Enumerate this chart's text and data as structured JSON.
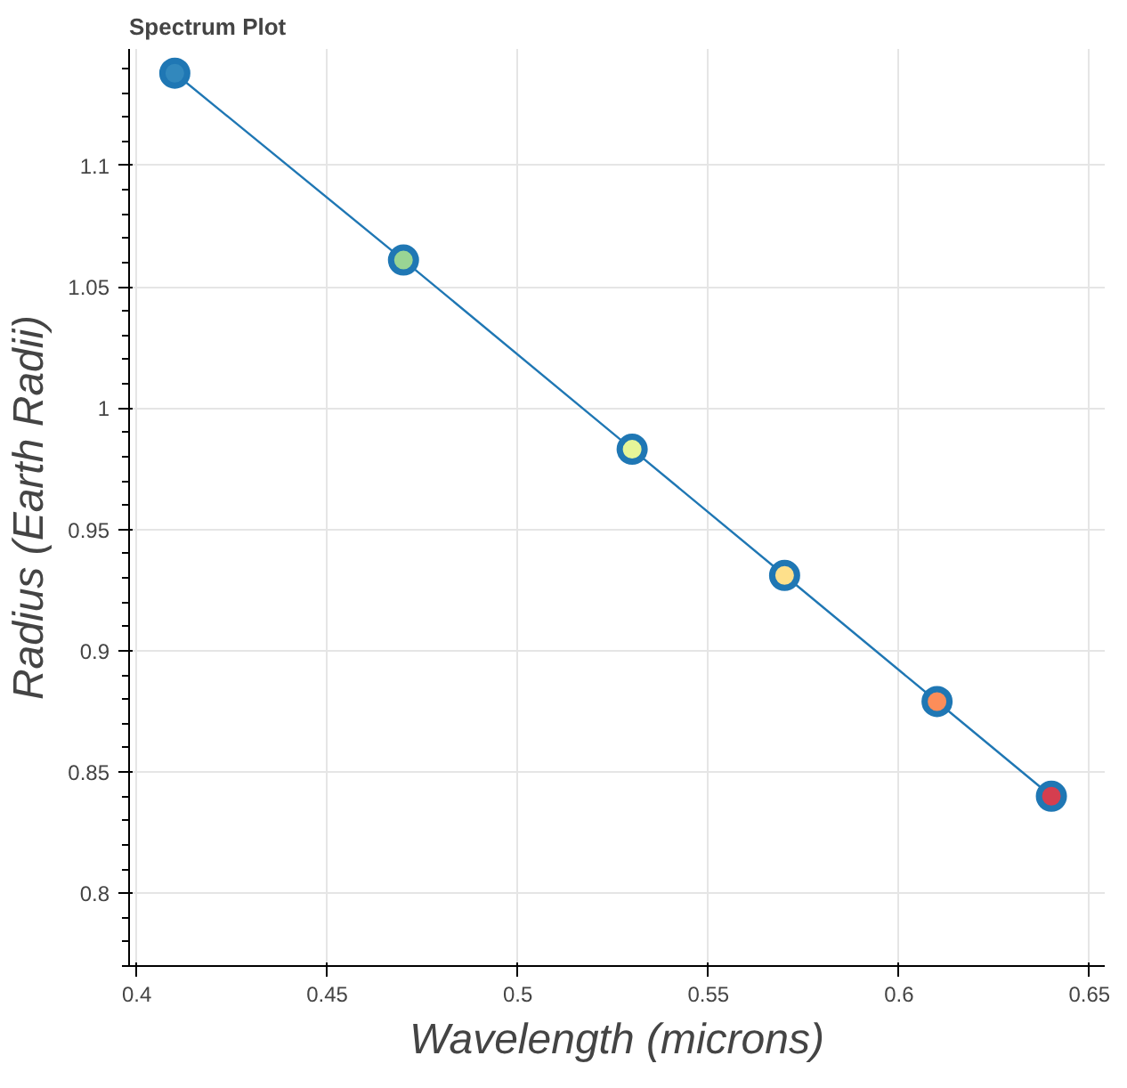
{
  "chart_data": {
    "type": "line",
    "title": "Spectrum Plot",
    "xlabel": "Wavelength (microns)",
    "ylabel": "Radius (Earth Radii)",
    "x": [
      0.41,
      0.47,
      0.53,
      0.57,
      0.61,
      0.64
    ],
    "series": [
      {
        "color": "#1f77b4",
        "values": [
          1.138,
          1.061,
          0.983,
          0.931,
          0.879,
          0.84
        ],
        "colors": [
          "#3288bd",
          "#99d594",
          "#e6f598",
          "#fee08b",
          "#fc8d59",
          "#d53e4f"
        ]
      }
    ],
    "marker": "circle",
    "line_style": "solid",
    "grid": true,
    "xlim": [
      0.398,
      0.654
    ],
    "ylim": [
      0.77,
      1.148
    ],
    "xticks": [
      0.4,
      0.45,
      0.5,
      0.55,
      0.6,
      0.65
    ],
    "yticks": [
      0.8,
      0.85,
      0.9,
      0.95,
      1,
      1.05,
      1.1
    ]
  }
}
